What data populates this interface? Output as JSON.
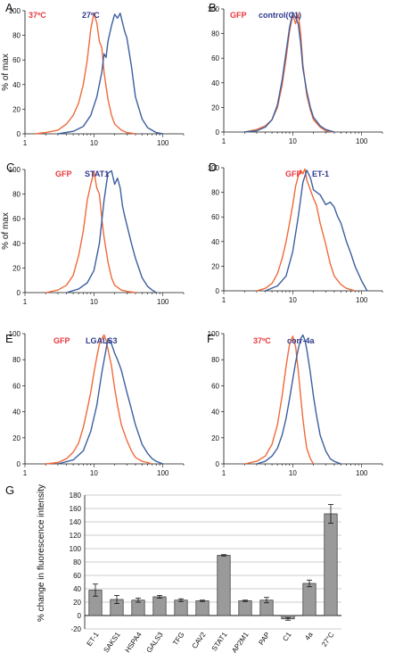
{
  "chart_data": [
    {
      "type": "line",
      "panel": "A",
      "ylabel": "% of max",
      "xscale": "log",
      "xticks": [
        "1",
        "10",
        "100"
      ],
      "yticks": [
        "0",
        "20",
        "40",
        "60",
        "80",
        "100"
      ],
      "ylim": [
        0,
        100
      ],
      "legend": [
        "37ºC",
        "27ºC"
      ],
      "series": [
        {
          "name": "37ºC",
          "color": "#f06a3c",
          "label_color": "#e8383d",
          "x": [
            1.4,
            2,
            3,
            4,
            5,
            6,
            7,
            8,
            9,
            10,
            11,
            12,
            13,
            14,
            16,
            18,
            20,
            25,
            30,
            40
          ],
          "y": [
            0,
            1,
            3,
            8,
            15,
            25,
            40,
            60,
            85,
            98,
            90,
            75,
            70,
            50,
            28,
            15,
            8,
            3,
            1,
            0
          ]
        },
        {
          "name": "27ºC",
          "color": "#3c5fa0",
          "label_color": "#2e3a8c",
          "x": [
            3,
            5,
            7,
            9,
            11,
            13,
            14,
            15,
            16,
            18,
            20,
            22,
            24,
            26,
            28,
            30,
            35,
            40,
            50,
            60,
            80,
            100
          ],
          "y": [
            0,
            2,
            6,
            15,
            30,
            50,
            65,
            62,
            75,
            88,
            97,
            94,
            98,
            90,
            83,
            78,
            55,
            30,
            12,
            5,
            1,
            0
          ]
        }
      ]
    },
    {
      "type": "line",
      "panel": "B",
      "xscale": "log",
      "xticks": [
        "1",
        "10",
        "100"
      ],
      "yticks": [
        "0",
        "20",
        "40",
        "60",
        "80",
        "100"
      ],
      "ylim": [
        0,
        100
      ],
      "legend": [
        "GFP",
        "control(C1)"
      ],
      "series": [
        {
          "name": "GFP",
          "color": "#f06a3c",
          "label_color": "#e8383d",
          "x": [
            2,
            3,
            4,
            5,
            6,
            7,
            8,
            9,
            10,
            11,
            12,
            13,
            14,
            16,
            18,
            20,
            25,
            30,
            40
          ],
          "y": [
            0,
            2,
            5,
            10,
            20,
            38,
            60,
            82,
            95,
            88,
            96,
            80,
            55,
            30,
            18,
            10,
            4,
            1,
            0
          ]
        },
        {
          "name": "control(C1)",
          "color": "#3c5fa0",
          "label_color": "#2e3a8c",
          "x": [
            2,
            3,
            4,
            5,
            6,
            7,
            8,
            9,
            10,
            11,
            12,
            13,
            14,
            16,
            18,
            20,
            25,
            30,
            40
          ],
          "y": [
            0,
            1,
            4,
            10,
            22,
            42,
            65,
            85,
            97,
            93,
            88,
            72,
            52,
            33,
            20,
            12,
            5,
            2,
            0
          ]
        }
      ]
    },
    {
      "type": "line",
      "panel": "C",
      "ylabel": "% of max",
      "xscale": "log",
      "xticks": [
        "1",
        "10",
        "100"
      ],
      "yticks": [
        "0",
        "20",
        "40",
        "60",
        "80",
        "100"
      ],
      "ylim": [
        0,
        100
      ],
      "legend": [
        "GFP",
        "STAT1"
      ],
      "series": [
        {
          "name": "GFP",
          "color": "#f06a3c",
          "label_color": "#e8383d",
          "x": [
            2,
            3,
            4,
            5,
            6,
            7,
            8,
            9,
            10,
            11,
            12,
            13,
            14,
            16,
            18,
            20,
            25,
            30,
            40
          ],
          "y": [
            0,
            2,
            6,
            14,
            30,
            50,
            75,
            88,
            98,
            85,
            80,
            60,
            45,
            25,
            12,
            6,
            2,
            1,
            0
          ]
        },
        {
          "name": "STAT1",
          "color": "#3c5fa0",
          "label_color": "#2e3a8c",
          "x": [
            4,
            6,
            8,
            10,
            12,
            14,
            16,
            18,
            20,
            22,
            24,
            26,
            28,
            30,
            35,
            40,
            50,
            60,
            70,
            80
          ],
          "y": [
            0,
            3,
            8,
            18,
            40,
            75,
            97,
            99,
            88,
            93,
            85,
            70,
            62,
            55,
            40,
            28,
            12,
            5,
            2,
            0
          ]
        }
      ]
    },
    {
      "type": "line",
      "panel": "D",
      "xscale": "log",
      "xticks": [
        "1",
        "10",
        "100"
      ],
      "yticks": [
        "0",
        "20",
        "40",
        "60",
        "80",
        "100"
      ],
      "ylim": [
        0,
        100
      ],
      "legend": [
        "GFP",
        "ET-1"
      ],
      "series": [
        {
          "name": "GFP",
          "color": "#f06a3c",
          "label_color": "#e8383d",
          "x": [
            3,
            4,
            5,
            6,
            7,
            8,
            9,
            10,
            11,
            12,
            13,
            14,
            15,
            16,
            18,
            20,
            22,
            25,
            30,
            35,
            40,
            50,
            60,
            80
          ],
          "y": [
            0,
            2,
            6,
            14,
            26,
            40,
            55,
            70,
            85,
            93,
            98,
            95,
            99,
            90,
            82,
            75,
            70,
            55,
            38,
            22,
            12,
            5,
            2,
            0
          ]
        },
        {
          "name": "ET-1",
          "color": "#3c5fa0",
          "label_color": "#2e3a8c",
          "x": [
            4,
            6,
            8,
            10,
            12,
            14,
            16,
            18,
            20,
            25,
            30,
            35,
            40,
            45,
            50,
            60,
            70,
            80,
            100,
            120
          ],
          "y": [
            0,
            4,
            12,
            32,
            60,
            88,
            98,
            92,
            82,
            78,
            70,
            72,
            68,
            60,
            55,
            40,
            30,
            20,
            8,
            0
          ]
        }
      ]
    },
    {
      "type": "line",
      "panel": "E",
      "xscale": "log",
      "xticks": [
        "1",
        "10",
        "100"
      ],
      "yticks": [
        "0",
        "20",
        "40",
        "60",
        "80",
        "100"
      ],
      "ylim": [
        0,
        100
      ],
      "legend": [
        "GFP",
        "LGALS3"
      ],
      "series": [
        {
          "name": "GFP",
          "color": "#f06a3c",
          "label_color": "#e8383d",
          "x": [
            2,
            3,
            4,
            5,
            6,
            7,
            8,
            9,
            10,
            11,
            12,
            13,
            14,
            15,
            16,
            18,
            20,
            22,
            25,
            30,
            35,
            40,
            50,
            60,
            70
          ],
          "y": [
            0,
            1,
            4,
            9,
            16,
            28,
            42,
            55,
            70,
            82,
            92,
            96,
            99,
            95,
            88,
            75,
            58,
            45,
            30,
            18,
            10,
            5,
            2,
            1,
            0
          ]
        },
        {
          "name": "LGALS3",
          "color": "#3c5fa0",
          "label_color": "#2e3a8c",
          "x": [
            3,
            5,
            7,
            9,
            11,
            13,
            15,
            16,
            18,
            20,
            22,
            25,
            30,
            35,
            40,
            50,
            60,
            70,
            80,
            100
          ],
          "y": [
            0,
            3,
            10,
            25,
            45,
            70,
            88,
            96,
            92,
            85,
            80,
            72,
            55,
            42,
            30,
            15,
            8,
            4,
            2,
            0
          ]
        }
      ]
    },
    {
      "type": "line",
      "panel": "F",
      "xscale": "log",
      "xticks": [
        "1",
        "10",
        "100"
      ],
      "yticks": [
        "0",
        "20",
        "40",
        "60",
        "80",
        "100"
      ],
      "ylim": [
        0,
        100
      ],
      "legend": [
        "37ºC",
        "corr-4a"
      ],
      "series": [
        {
          "name": "37ºC",
          "color": "#f06a3c",
          "label_color": "#e8383d",
          "x": [
            2,
            3,
            4,
            5,
            6,
            7,
            8,
            9,
            10,
            11,
            12,
            13,
            14,
            15,
            16,
            18,
            20
          ],
          "y": [
            0,
            2,
            6,
            15,
            30,
            52,
            75,
            92,
            98,
            90,
            72,
            52,
            35,
            22,
            12,
            4,
            0
          ]
        },
        {
          "name": "corr-4a",
          "color": "#3c5fa0",
          "label_color": "#2e3a8c",
          "x": [
            3,
            4,
            5,
            6,
            7,
            8,
            9,
            10,
            11,
            12,
            13,
            14,
            15,
            16,
            18,
            20,
            22,
            25,
            30,
            35,
            40,
            50
          ],
          "y": [
            0,
            2,
            6,
            12,
            22,
            35,
            50,
            65,
            78,
            88,
            96,
            99,
            95,
            88,
            70,
            52,
            38,
            22,
            10,
            4,
            2,
            0
          ]
        }
      ]
    },
    {
      "type": "bar",
      "panel": "G",
      "ylabel": "% change in fluorescence intensity",
      "ylim": [
        -20,
        180
      ],
      "yticks": [
        "-20",
        "0",
        "20",
        "40",
        "60",
        "80",
        "100",
        "120",
        "140",
        "160",
        "180"
      ],
      "bar_color": "#9a9a9a",
      "categories": [
        "ET-1",
        "SAKS1",
        "HSPA4",
        "LGALS3",
        "TFG",
        "CAV2",
        "STAT1",
        "AP2M1",
        "PAP",
        "C1",
        "4a",
        "27°C"
      ],
      "values": [
        38,
        24,
        23,
        28,
        23,
        22,
        90,
        22,
        23,
        -5,
        48,
        152
      ],
      "errors": [
        9,
        6,
        3,
        2,
        2,
        1,
        1,
        1,
        4,
        2,
        5,
        14
      ]
    }
  ]
}
